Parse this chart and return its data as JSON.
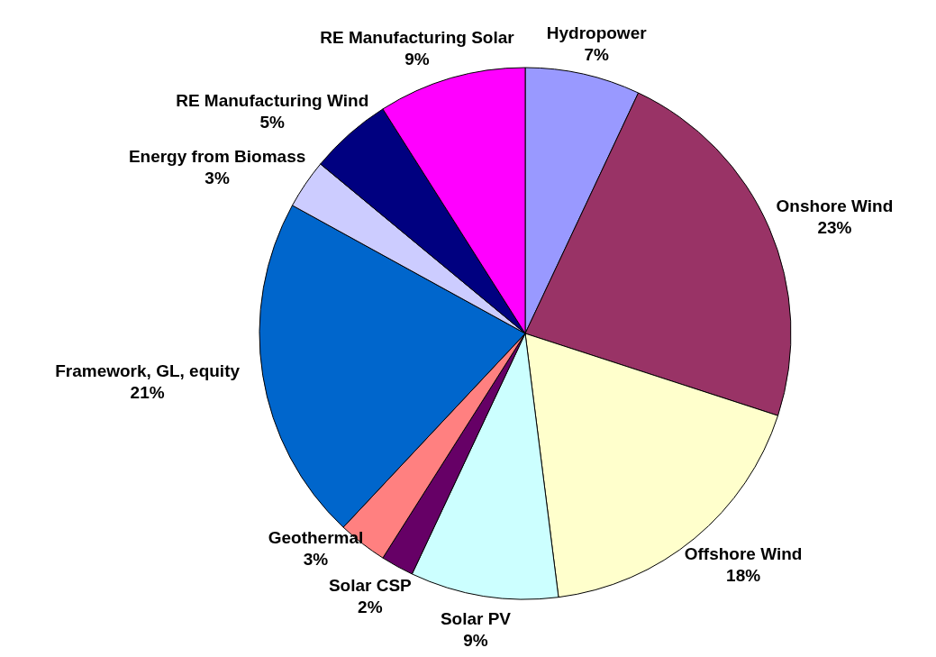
{
  "chart_data": {
    "type": "pie",
    "categories": [
      "Hydropower",
      "Onshore Wind",
      "Offshore Wind",
      "Solar PV",
      "Solar CSP",
      "Geothermal",
      "Framework, GL, equity",
      "Energy from Biomass",
      "RE Manufacturing Wind",
      "RE Manufacturing Solar"
    ],
    "values": [
      7,
      23,
      18,
      9,
      2,
      3,
      21,
      3,
      5,
      9
    ],
    "value_labels": [
      "7%",
      "23%",
      "18%",
      "9%",
      "2%",
      "3%",
      "21%",
      "3%",
      "5%",
      "9%"
    ],
    "colors": [
      "#9999ff",
      "#993366",
      "#ffffcc",
      "#ccffff",
      "#660066",
      "#ff8080",
      "#0066cc",
      "#ccccff",
      "#000080",
      "#ff00ff"
    ]
  }
}
